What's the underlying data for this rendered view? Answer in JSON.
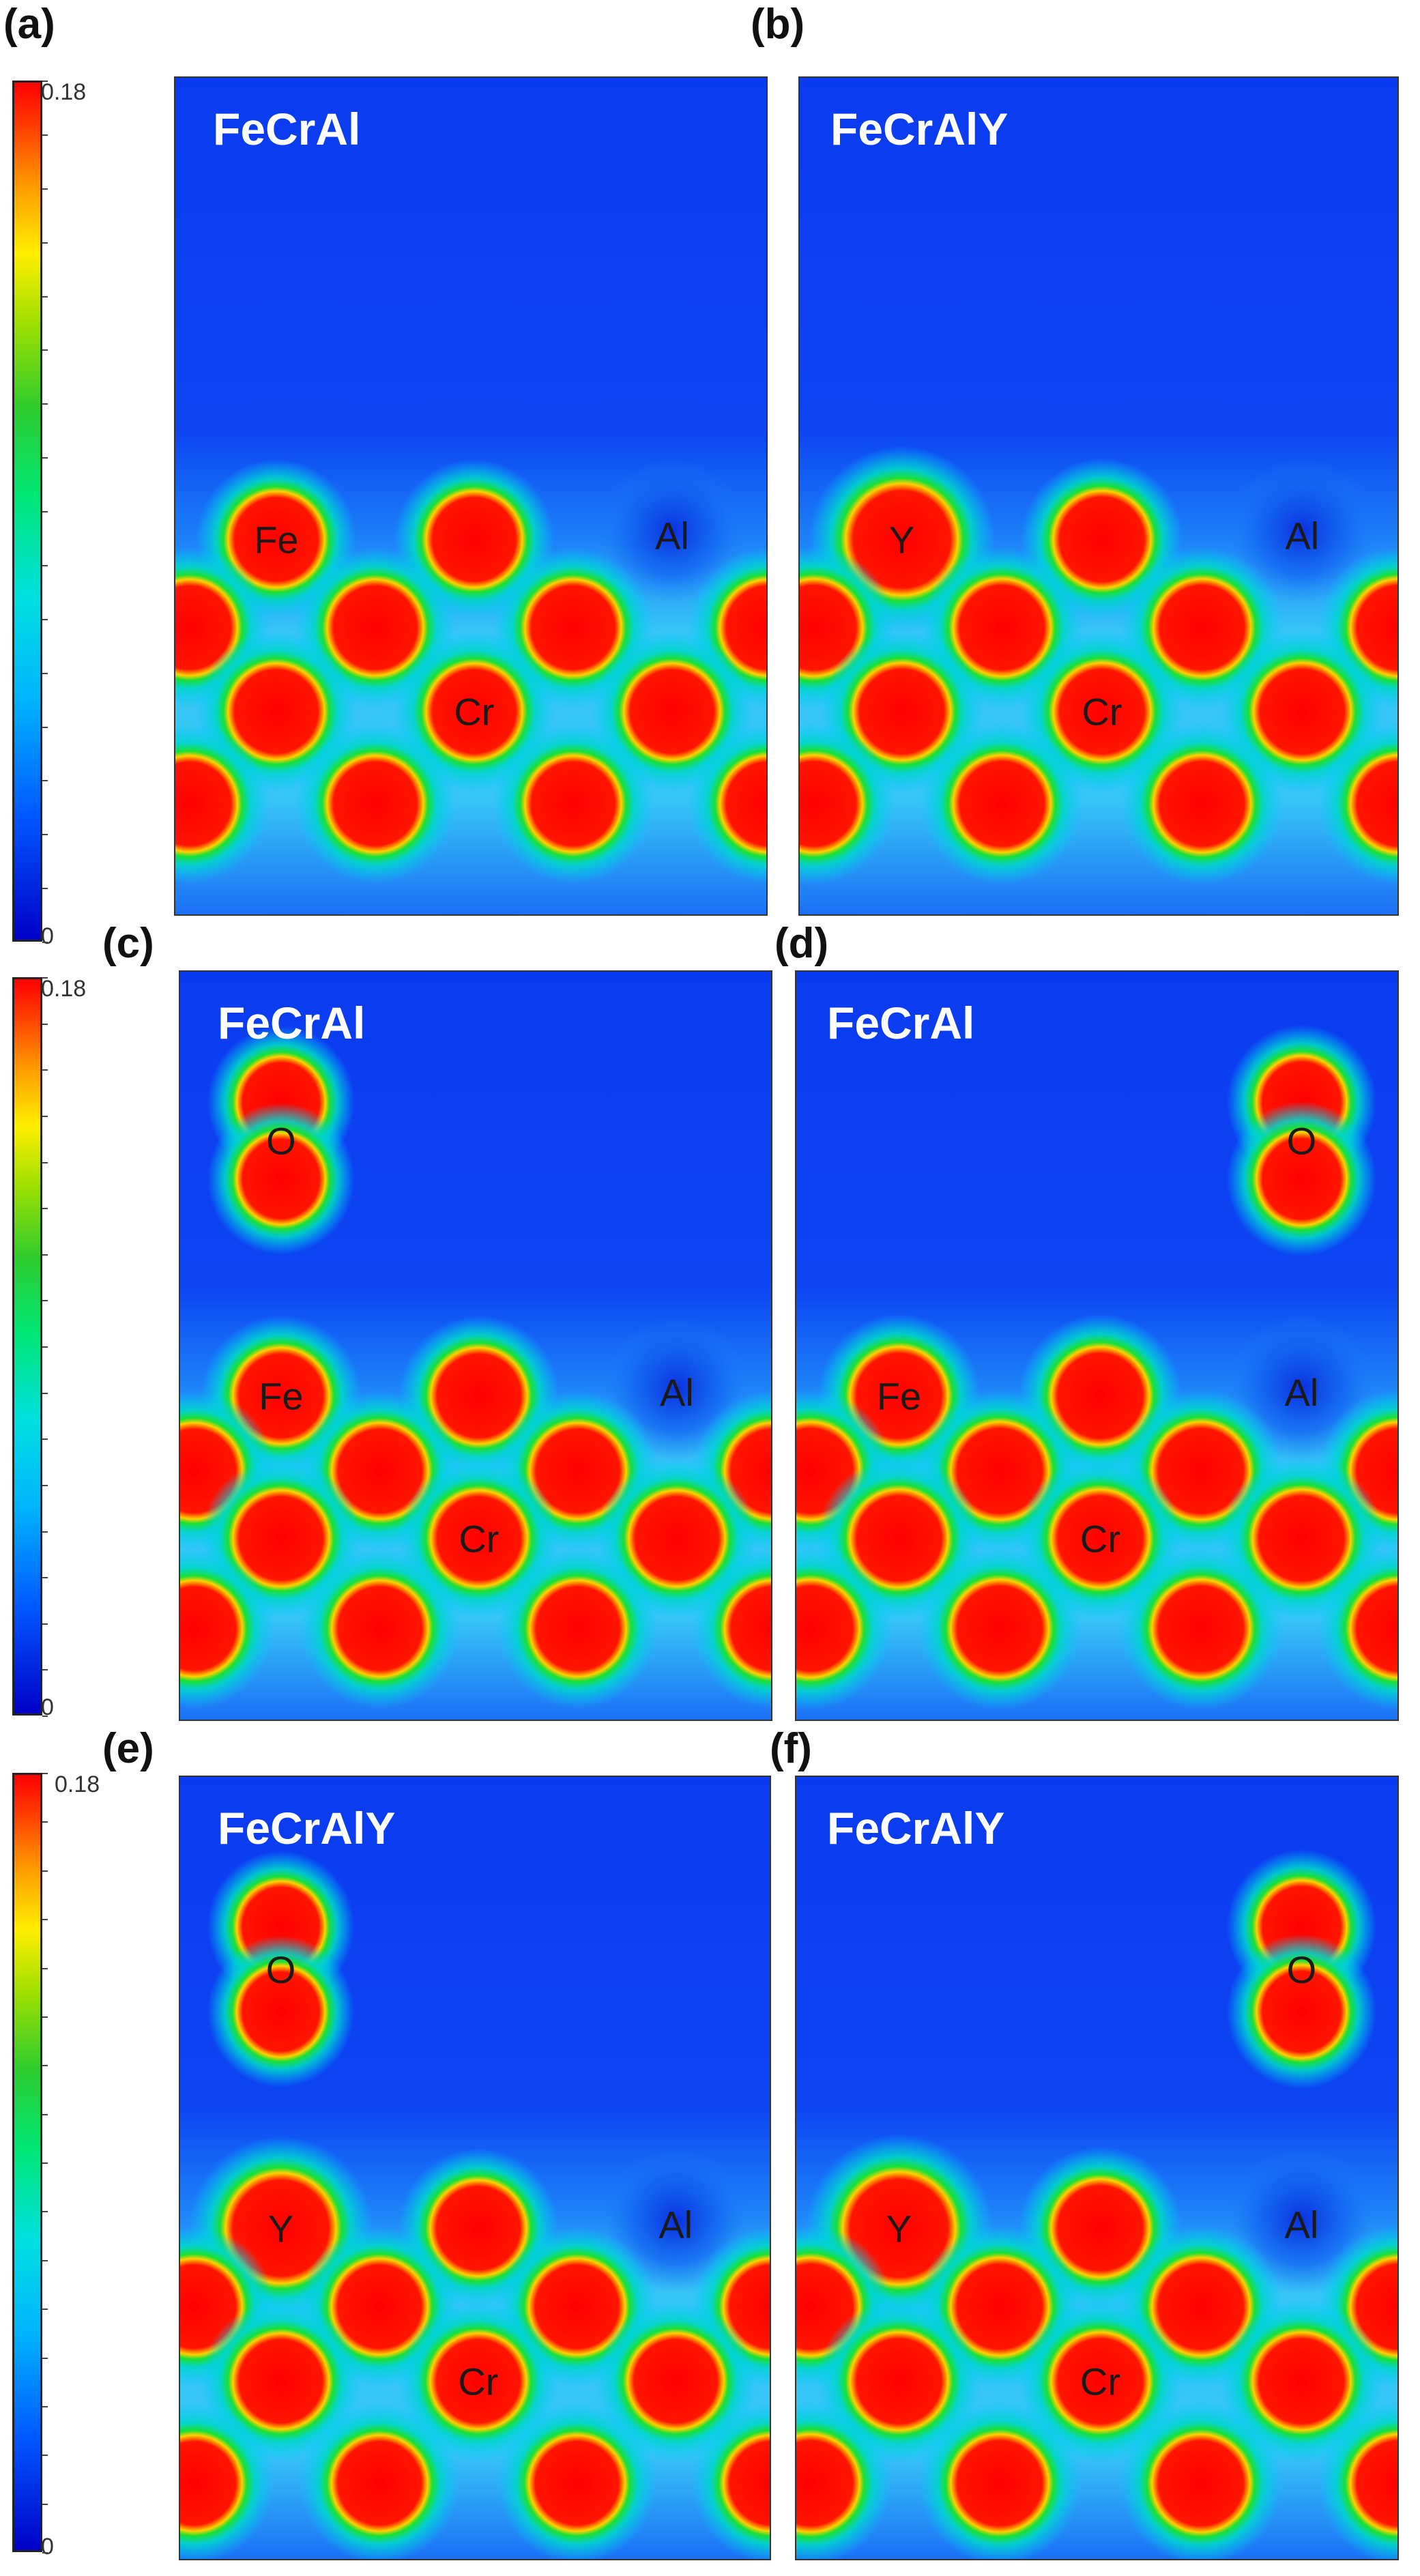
{
  "colorbar": {
    "max_label": "0.18",
    "min_label": "0",
    "colors": [
      "#0000c8",
      "#00e0e0",
      "#2ecc2e",
      "#ffee00",
      "#ff0000"
    ]
  },
  "chart_data": [
    {
      "type": "heatmap",
      "id": "a",
      "panel_label": "(a)",
      "title": "FeCrAl",
      "colorbar_range": [
        0,
        0.18
      ],
      "atoms": [
        {
          "row": 1,
          "col": 0,
          "label": "Fe"
        },
        {
          "row": 1,
          "col": 2,
          "label": ""
        },
        {
          "row": 1,
          "col": 4,
          "label": "Al",
          "depleted": true
        },
        {
          "row": 2,
          "col": -1,
          "label": ""
        },
        {
          "row": 2,
          "col": 1,
          "label": ""
        },
        {
          "row": 2,
          "col": 3,
          "label": ""
        },
        {
          "row": 2,
          "col": 5,
          "label": ""
        },
        {
          "row": 3,
          "col": 0,
          "label": ""
        },
        {
          "row": 3,
          "col": 2,
          "label": "Cr"
        },
        {
          "row": 3,
          "col": 4,
          "label": ""
        },
        {
          "row": 4,
          "col": -1,
          "label": ""
        },
        {
          "row": 4,
          "col": 1,
          "label": ""
        },
        {
          "row": 4,
          "col": 3,
          "label": ""
        },
        {
          "row": 4,
          "col": 5,
          "label": ""
        }
      ]
    },
    {
      "type": "heatmap",
      "id": "b",
      "panel_label": "(b)",
      "title": "FeCrAlY",
      "colorbar_range": [
        0,
        0.18
      ],
      "atoms": [
        {
          "row": 1,
          "col": 0,
          "label": "Y",
          "big": true
        },
        {
          "row": 1,
          "col": 2,
          "label": ""
        },
        {
          "row": 1,
          "col": 4,
          "label": "Al",
          "depleted": true
        },
        {
          "row": 2,
          "col": -1,
          "label": ""
        },
        {
          "row": 2,
          "col": 1,
          "label": ""
        },
        {
          "row": 2,
          "col": 3,
          "label": ""
        },
        {
          "row": 2,
          "col": 5,
          "label": ""
        },
        {
          "row": 3,
          "col": 0,
          "label": ""
        },
        {
          "row": 3,
          "col": 2,
          "label": "Cr"
        },
        {
          "row": 3,
          "col": 4,
          "label": ""
        },
        {
          "row": 4,
          "col": -1,
          "label": ""
        },
        {
          "row": 4,
          "col": 1,
          "label": ""
        },
        {
          "row": 4,
          "col": 3,
          "label": ""
        },
        {
          "row": 4,
          "col": 5,
          "label": ""
        }
      ]
    },
    {
      "type": "heatmap",
      "id": "c",
      "panel_label": "(c)",
      "title": "FeCrAl",
      "colorbar_range": [
        0,
        0.18
      ],
      "atoms": [
        {
          "row": 0,
          "col": 0,
          "label": "O",
          "oxygen": true
        },
        {
          "row": 1,
          "col": 0,
          "label": "Fe"
        },
        {
          "row": 1,
          "col": 2,
          "label": ""
        },
        {
          "row": 1,
          "col": 4,
          "label": "Al",
          "depleted": true
        },
        {
          "row": 2,
          "col": -1,
          "label": ""
        },
        {
          "row": 2,
          "col": 1,
          "label": ""
        },
        {
          "row": 2,
          "col": 3,
          "label": ""
        },
        {
          "row": 2,
          "col": 5,
          "label": ""
        },
        {
          "row": 3,
          "col": 0,
          "label": ""
        },
        {
          "row": 3,
          "col": 2,
          "label": "Cr"
        },
        {
          "row": 3,
          "col": 4,
          "label": ""
        },
        {
          "row": 4,
          "col": -1,
          "label": ""
        },
        {
          "row": 4,
          "col": 1,
          "label": ""
        },
        {
          "row": 4,
          "col": 3,
          "label": ""
        },
        {
          "row": 4,
          "col": 5,
          "label": ""
        }
      ]
    },
    {
      "type": "heatmap",
      "id": "d",
      "panel_label": "(d)",
      "title": "FeCrAl",
      "colorbar_range": [
        0,
        0.18
      ],
      "atoms": [
        {
          "row": 0,
          "col": 4,
          "label": "O",
          "oxygen": true
        },
        {
          "row": 1,
          "col": 0,
          "label": "Fe"
        },
        {
          "row": 1,
          "col": 2,
          "label": ""
        },
        {
          "row": 1,
          "col": 4,
          "label": "Al",
          "depleted": true
        },
        {
          "row": 2,
          "col": -1,
          "label": ""
        },
        {
          "row": 2,
          "col": 1,
          "label": ""
        },
        {
          "row": 2,
          "col": 3,
          "label": ""
        },
        {
          "row": 2,
          "col": 5,
          "label": ""
        },
        {
          "row": 3,
          "col": 0,
          "label": ""
        },
        {
          "row": 3,
          "col": 2,
          "label": "Cr"
        },
        {
          "row": 3,
          "col": 4,
          "label": ""
        },
        {
          "row": 4,
          "col": -1,
          "label": ""
        },
        {
          "row": 4,
          "col": 1,
          "label": ""
        },
        {
          "row": 4,
          "col": 3,
          "label": ""
        },
        {
          "row": 4,
          "col": 5,
          "label": ""
        }
      ]
    },
    {
      "type": "heatmap",
      "id": "e",
      "panel_label": "(e)",
      "title": "FeCrAlY",
      "colorbar_range": [
        0,
        0.18
      ],
      "atoms": [
        {
          "row": 0,
          "col": 0,
          "label": "O",
          "oxygen": true
        },
        {
          "row": 1,
          "col": 0,
          "label": "Y",
          "big": true
        },
        {
          "row": 1,
          "col": 2,
          "label": ""
        },
        {
          "row": 1,
          "col": 4,
          "label": "Al",
          "depleted": true
        },
        {
          "row": 2,
          "col": -1,
          "label": ""
        },
        {
          "row": 2,
          "col": 1,
          "label": ""
        },
        {
          "row": 2,
          "col": 3,
          "label": ""
        },
        {
          "row": 2,
          "col": 5,
          "label": ""
        },
        {
          "row": 3,
          "col": 0,
          "label": ""
        },
        {
          "row": 3,
          "col": 2,
          "label": "Cr"
        },
        {
          "row": 3,
          "col": 4,
          "label": ""
        },
        {
          "row": 4,
          "col": -1,
          "label": ""
        },
        {
          "row": 4,
          "col": 1,
          "label": ""
        },
        {
          "row": 4,
          "col": 3,
          "label": ""
        },
        {
          "row": 4,
          "col": 5,
          "label": ""
        }
      ]
    },
    {
      "type": "heatmap",
      "id": "f",
      "panel_label": "(f)",
      "title": "FeCrAlY",
      "colorbar_range": [
        0,
        0.18
      ],
      "atoms": [
        {
          "row": 0,
          "col": 4,
          "label": "O",
          "oxygen": true
        },
        {
          "row": 1,
          "col": 0,
          "label": "Y",
          "big": true
        },
        {
          "row": 1,
          "col": 2,
          "label": ""
        },
        {
          "row": 1,
          "col": 4,
          "label": "Al",
          "depleted": true
        },
        {
          "row": 2,
          "col": -1,
          "label": ""
        },
        {
          "row": 2,
          "col": 1,
          "label": ""
        },
        {
          "row": 2,
          "col": 3,
          "label": ""
        },
        {
          "row": 2,
          "col": 5,
          "label": ""
        },
        {
          "row": 3,
          "col": 0,
          "label": ""
        },
        {
          "row": 3,
          "col": 2,
          "label": "Cr"
        },
        {
          "row": 3,
          "col": 4,
          "label": ""
        },
        {
          "row": 4,
          "col": -1,
          "label": ""
        },
        {
          "row": 4,
          "col": 1,
          "label": ""
        },
        {
          "row": 4,
          "col": 3,
          "label": ""
        },
        {
          "row": 4,
          "col": 5,
          "label": ""
        }
      ]
    }
  ]
}
